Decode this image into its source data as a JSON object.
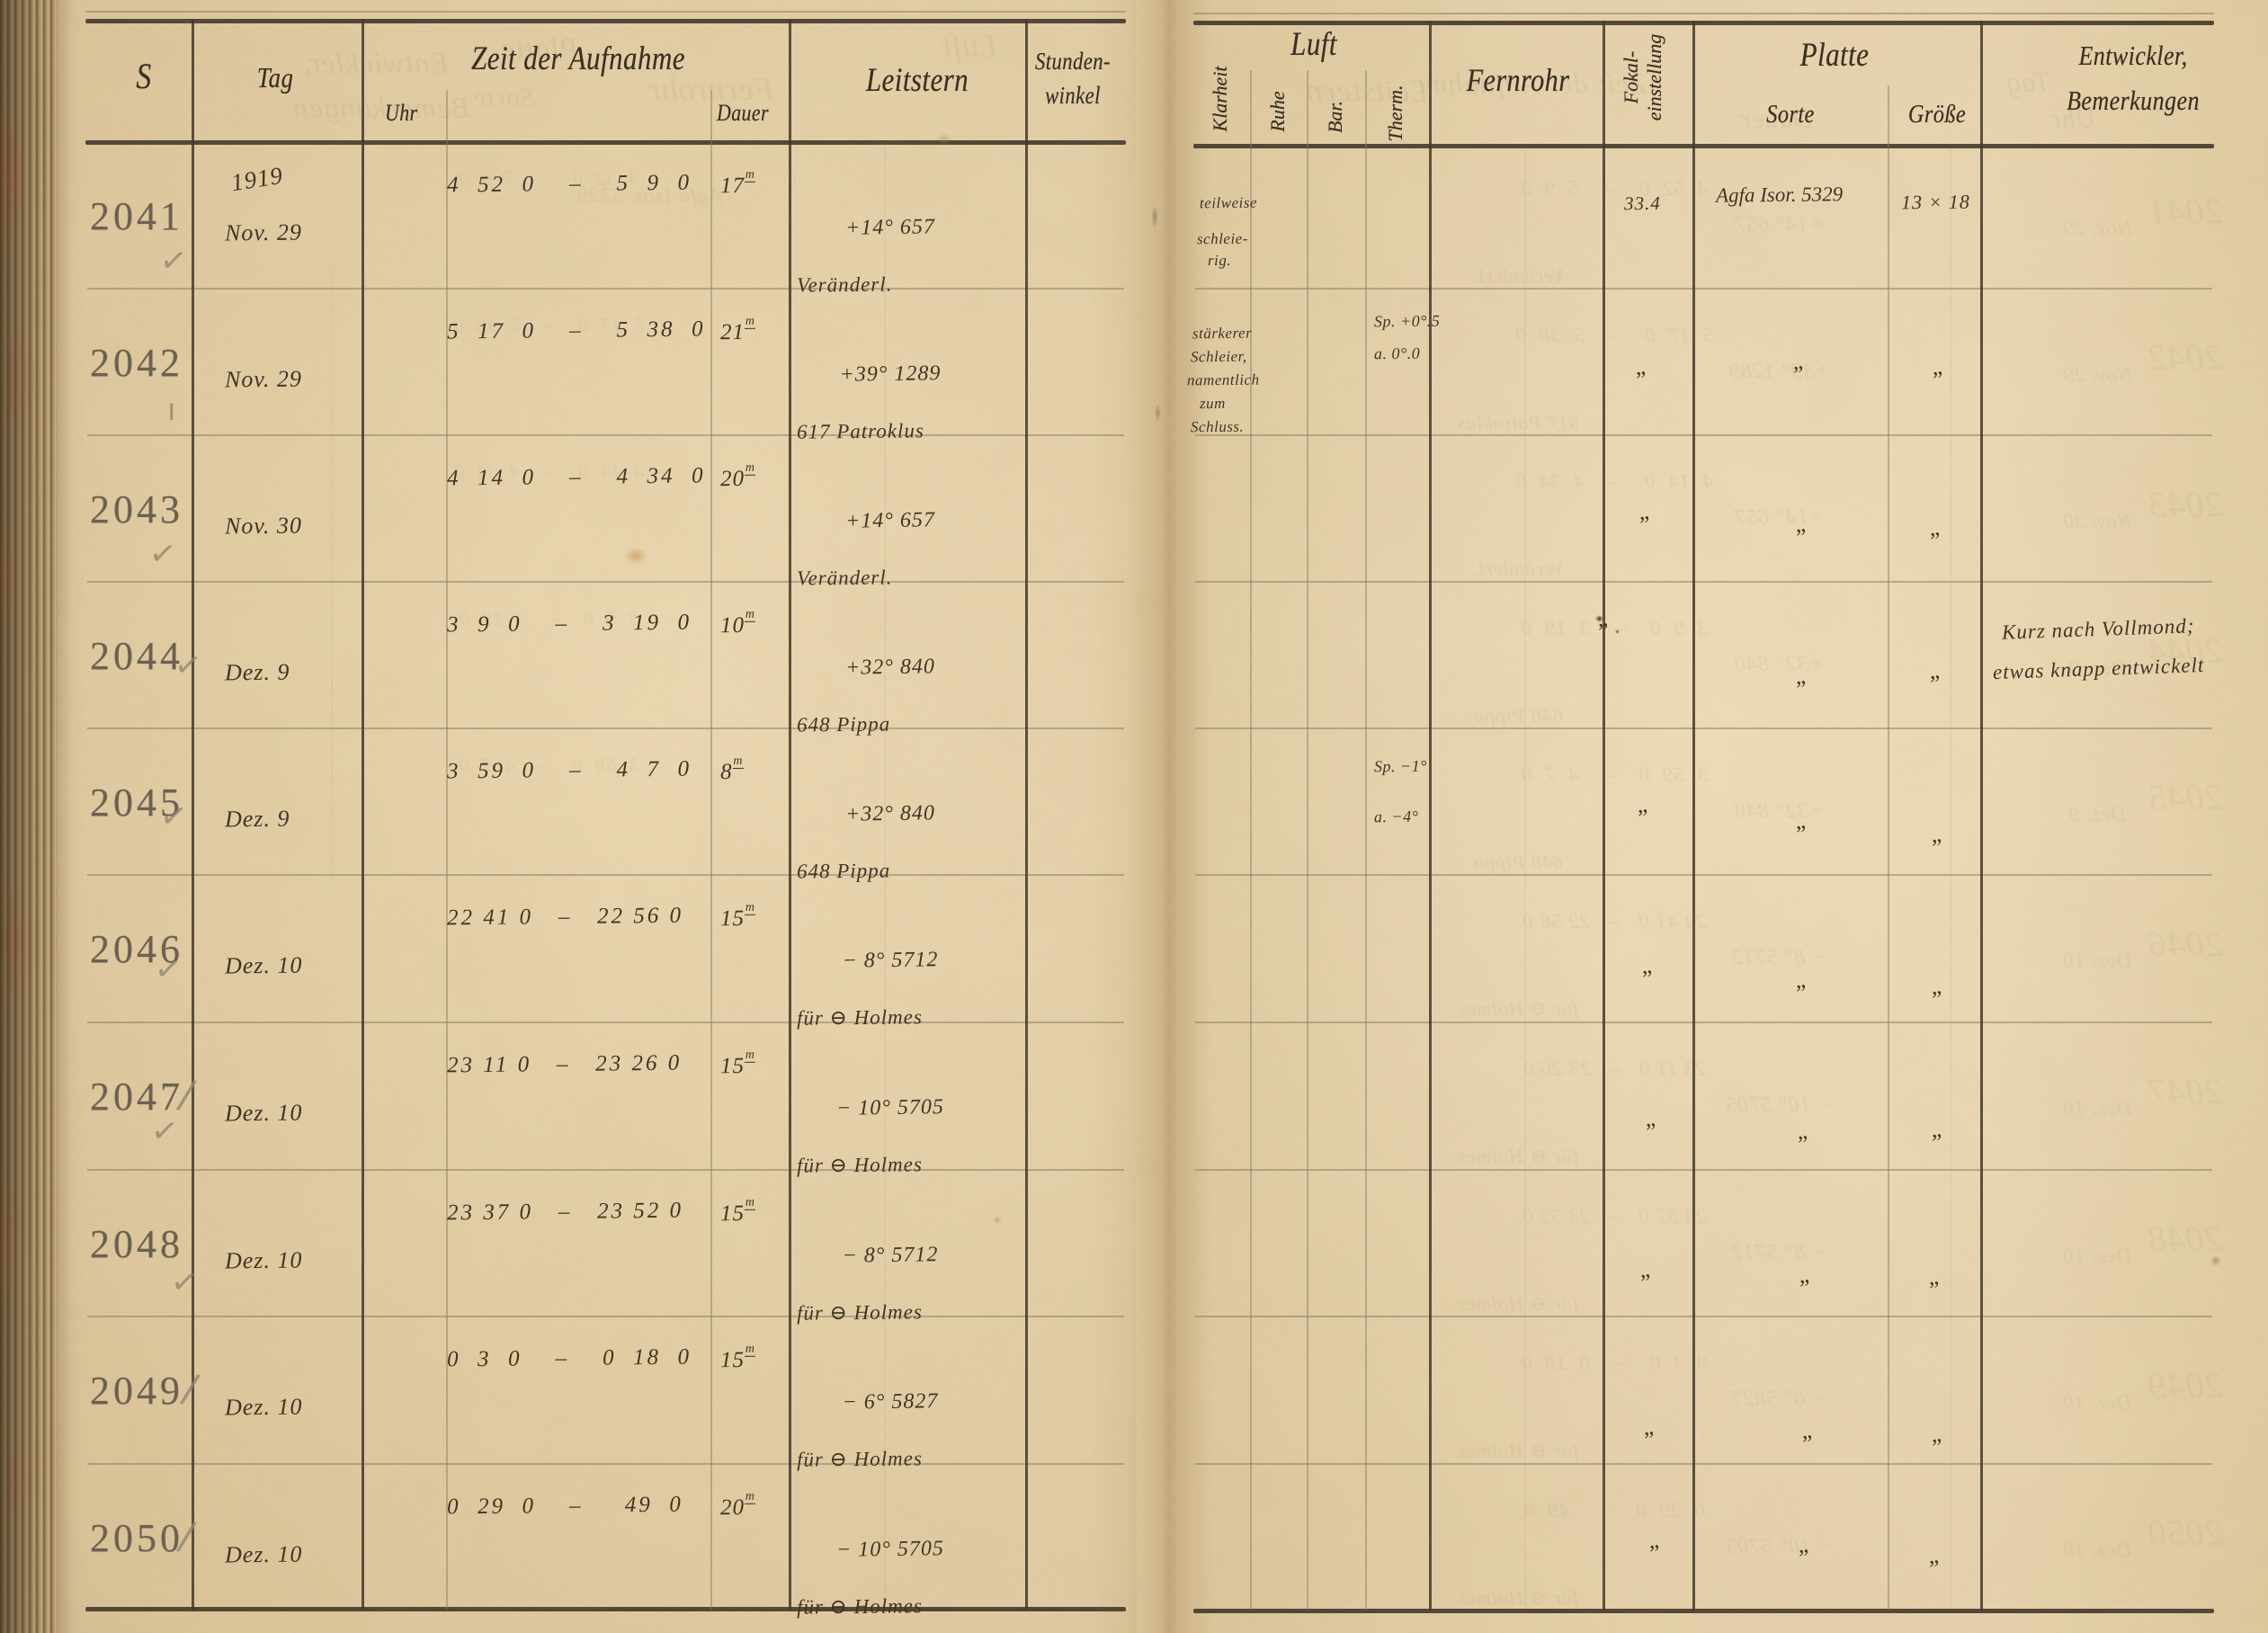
{
  "document_type": "astronomical photographic observation logbook spread (German, 1919)",
  "colors": {
    "paper": "#ecd9b6",
    "ink": "#352c21",
    "printed": "#262019",
    "stamp": "#544e43",
    "pencil": "#8e8572",
    "rule_heavy": "#2f2820",
    "rule_light": "#6d6450"
  },
  "page_left": {
    "header": {
      "s": "S",
      "tag": "Tag",
      "zeit": "Zeit der Aufnahme",
      "uhr": "Uhr",
      "dauer": "Dauer",
      "leitstern": "Leitstern",
      "stundenwinkel": [
        "Stunden-",
        "winkel"
      ]
    }
  },
  "page_right": {
    "header": {
      "luft": "Luft",
      "klarheit": "Klarheit",
      "ruhe": "Ruhe",
      "bar": "Bar.",
      "therm": "Therm.",
      "fernrohr": "Fernrohr",
      "fokal": [
        "Fokal-",
        "einstellung"
      ],
      "platte": "Platte",
      "sorte": "Sorte",
      "groesse": "Größe",
      "entwickler": [
        "Entwickler,",
        "Bemerkungen"
      ]
    }
  },
  "marks": {
    "ditto": "„",
    "tick": "✓",
    "slash": "∕",
    "stroke": "ı"
  },
  "rows": [
    {
      "s": "2041",
      "year": "1919",
      "tag": "Nov. 29",
      "uhr": "4  52  0    –    5  9  0",
      "dauer": "17",
      "dauer_unit": "m",
      "leitstern": "+14° 657",
      "note": "Veränderl.",
      "klarheit": [
        "teilweise",
        "schleie-",
        "rig."
      ],
      "therm": [],
      "fokal": "33.4",
      "sorte": "Agfa Isor. 5329",
      "groesse": "13 × 18",
      "bemerkung": [],
      "check": "tick"
    },
    {
      "s": "2042",
      "year": "",
      "tag": "Nov. 29",
      "uhr": "5  17  0    –    5  38  0",
      "dauer": "21",
      "dauer_unit": "m",
      "leitstern": "+39° 1289",
      "note": "617 Patroklus",
      "klarheit": [
        "stärkerer",
        "Schleier,",
        "namentlich",
        "zum",
        "Schluss."
      ],
      "therm": [
        "Sp. +0°.5",
        "a. 0°.0"
      ],
      "fokal": "",
      "sorte": "",
      "groesse": "",
      "bemerkung": [],
      "check": "stroke"
    },
    {
      "s": "2043",
      "year": "",
      "tag": "Nov. 30",
      "uhr": "4  14  0    –    4  34  0",
      "dauer": "20",
      "dauer_unit": "m",
      "leitstern": "+14° 657",
      "note": "Veränderl.",
      "klarheit": [],
      "therm": [],
      "fokal": "",
      "sorte": "",
      "groesse": "",
      "bemerkung": [],
      "check": "tick"
    },
    {
      "s": "2044",
      "year": "",
      "tag": "Dez. 9",
      "uhr": "3  9  0    –    3  19  0",
      "dauer": "10",
      "dauer_unit": "m",
      "leitstern": "+32° 840",
      "note": "648 Pippa",
      "klarheit": [],
      "therm": [],
      "fokal": "",
      "sorte": "",
      "groesse": "",
      "bemerkung": [
        "Kurz nach Vollmond;",
        "etwas knapp entwickelt"
      ],
      "check": "tick"
    },
    {
      "s": "2045",
      "year": "",
      "tag": "Dez. 9",
      "uhr": "3  59  0    –    4  7  0",
      "dauer": "8",
      "dauer_unit": "m",
      "leitstern": "+32° 840",
      "note": "648 Pippa",
      "klarheit": [],
      "therm": [
        "Sp. −1°",
        "a. −4°"
      ],
      "fokal": "",
      "sorte": "",
      "groesse": "",
      "bemerkung": [],
      "check": "tick"
    },
    {
      "s": "2046",
      "year": "",
      "tag": "Dez. 10",
      "uhr": "22 41 0   –   22 56 0",
      "dauer": "15",
      "dauer_unit": "m",
      "leitstern": "− 8° 5712",
      "note": "für ⊖ Holmes",
      "klarheit": [],
      "therm": [],
      "fokal": "",
      "sorte": "",
      "groesse": "",
      "bemerkung": [],
      "check": "tick"
    },
    {
      "s": "2047",
      "year": "",
      "tag": "Dez. 10",
      "uhr": "23 11 0   –   23 26 0",
      "dauer": "15",
      "dauer_unit": "m",
      "leitstern": "− 10° 5705",
      "note": "für ⊖ Holmes",
      "klarheit": [],
      "therm": [],
      "fokal": "",
      "sorte": "",
      "groesse": "",
      "bemerkung": [],
      "check": "slash-tick"
    },
    {
      "s": "2048",
      "year": "",
      "tag": "Dez. 10",
      "uhr": "23 37 0   –   23 52 0",
      "dauer": "15",
      "dauer_unit": "m",
      "leitstern": "− 8° 5712",
      "note": "für ⊖ Holmes",
      "klarheit": [],
      "therm": [],
      "fokal": "",
      "sorte": "",
      "groesse": "",
      "bemerkung": [],
      "check": "tick"
    },
    {
      "s": "2049",
      "year": "",
      "tag": "Dez. 10",
      "uhr": "0  3  0    –    0  18  0",
      "dauer": "15",
      "dauer_unit": "m",
      "leitstern": "− 6° 5827",
      "note": "für ⊖ Holmes",
      "klarheit": [],
      "therm": [],
      "fokal": "",
      "sorte": "",
      "groesse": "",
      "bemerkung": [],
      "check": "slash"
    },
    {
      "s": "2050",
      "year": "",
      "tag": "Dez. 10",
      "uhr": "0  29  0    –     49  0",
      "dauer": "20",
      "dauer_unit": "m",
      "leitstern": "− 10° 5705",
      "note": "für ⊖ Holmes",
      "klarheit": [],
      "therm": [],
      "fokal": "",
      "sorte": "",
      "groesse": "",
      "bemerkung": [],
      "check": "slash"
    }
  ],
  "ghost_header_left": [
    "Entwickler,",
    "Bemerkungen",
    "Platte",
    "Sorte",
    "Fernrohr",
    "Luft"
  ],
  "ghost_header_right": [
    "Leitstern",
    "Zeit der Aufnahme",
    "Dauer",
    "Tag",
    "Uhr"
  ]
}
